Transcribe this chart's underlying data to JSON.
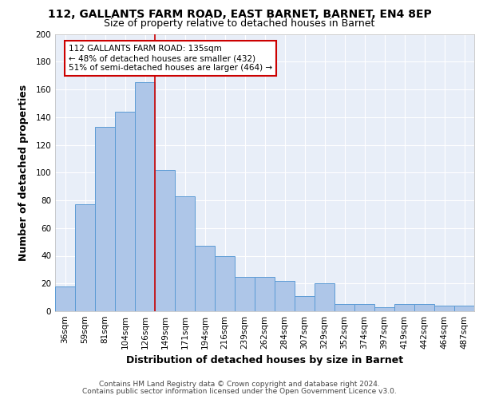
{
  "title_line1": "112, GALLANTS FARM ROAD, EAST BARNET, BARNET, EN4 8EP",
  "title_line2": "Size of property relative to detached houses in Barnet",
  "xlabel": "Distribution of detached houses by size in Barnet",
  "ylabel": "Number of detached properties",
  "categories": [
    "36sqm",
    "59sqm",
    "81sqm",
    "104sqm",
    "126sqm",
    "149sqm",
    "171sqm",
    "194sqm",
    "216sqm",
    "239sqm",
    "262sqm",
    "284sqm",
    "307sqm",
    "329sqm",
    "352sqm",
    "374sqm",
    "397sqm",
    "419sqm",
    "442sqm",
    "464sqm",
    "487sqm"
  ],
  "values": [
    18,
    77,
    133,
    144,
    165,
    102,
    83,
    47,
    40,
    25,
    25,
    22,
    11,
    20,
    5,
    5,
    3,
    5,
    5,
    4,
    4
  ],
  "bar_color": "#aec6e8",
  "bar_edge_color": "#5b9bd5",
  "red_line_x": 4.5,
  "annotation_text_line1": "112 GALLANTS FARM ROAD: 135sqm",
  "annotation_text_line2": "← 48% of detached houses are smaller (432)",
  "annotation_text_line3": "51% of semi-detached houses are larger (464) →",
  "annotation_box_color": "#ffffff",
  "annotation_box_edge_color": "#cc0000",
  "red_line_color": "#cc0000",
  "ylim": [
    0,
    200
  ],
  "yticks": [
    0,
    20,
    40,
    60,
    80,
    100,
    120,
    140,
    160,
    180,
    200
  ],
  "plot_bg_color": "#e8eef8",
  "grid_color": "#ffffff",
  "footer_line1": "Contains HM Land Registry data © Crown copyright and database right 2024.",
  "footer_line2": "Contains public sector information licensed under the Open Government Licence v3.0.",
  "title_fontsize": 10,
  "subtitle_fontsize": 9,
  "axis_label_fontsize": 9,
  "tick_fontsize": 7.5,
  "annotation_fontsize": 7.5,
  "footer_fontsize": 6.5
}
